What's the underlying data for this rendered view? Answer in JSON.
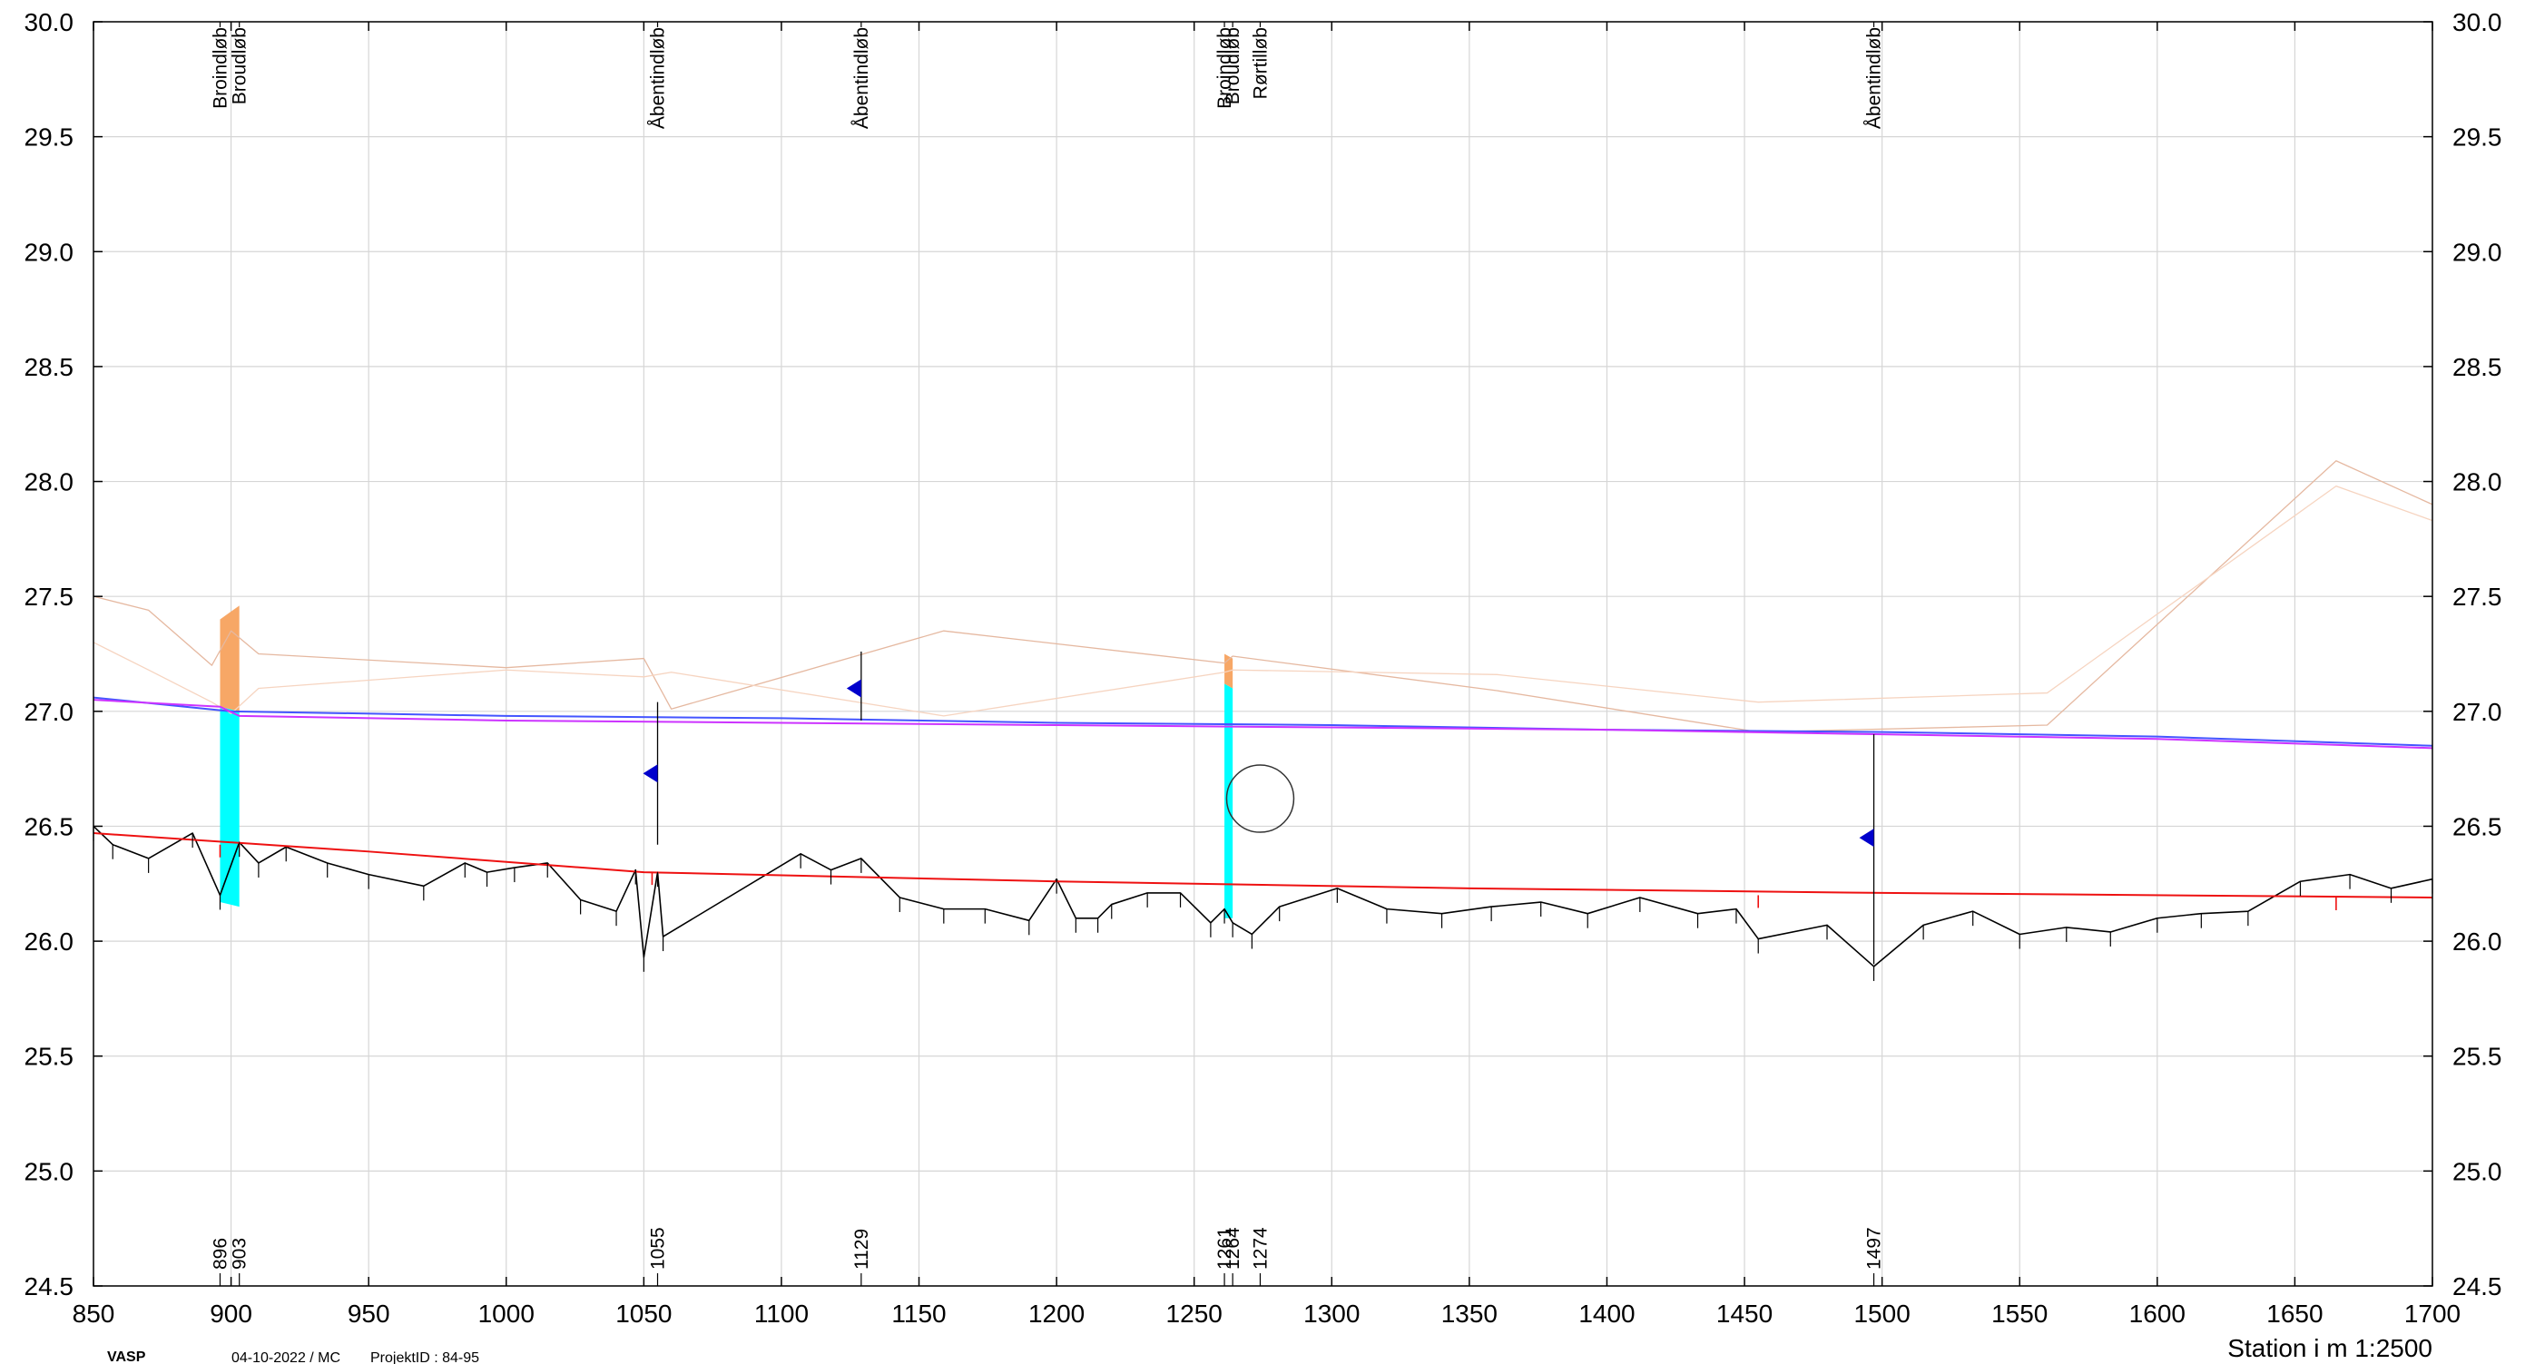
{
  "chart_data": {
    "type": "line",
    "xlim": [
      850,
      1700
    ],
    "ylim": [
      24.5,
      30.0
    ],
    "x_ticks": [
      850,
      900,
      950,
      1000,
      1050,
      1100,
      1150,
      1200,
      1250,
      1300,
      1350,
      1400,
      1450,
      1500,
      1550,
      1600,
      1650,
      1700
    ],
    "y_ticks": [
      24.5,
      25.0,
      25.5,
      26.0,
      26.5,
      27.0,
      27.5,
      28.0,
      28.5,
      29.0,
      29.5,
      30.0
    ],
    "x_axis_label": "Station i m  1:2500",
    "grid": true,
    "footer": {
      "logo": "VASP",
      "date_line": "04-10-2022 / MC",
      "project": "ProjektID : 84-95"
    },
    "structures": [
      {
        "station": 896,
        "station_label": "896",
        "name": "Broindløb"
      },
      {
        "station": 903,
        "station_label": "903",
        "name": "Broudløb"
      },
      {
        "station": 1055,
        "station_label": "1055",
        "name": "Åbentindløb"
      },
      {
        "station": 1129,
        "station_label": "1129",
        "name": "Åbentindløb"
      },
      {
        "station": 1261,
        "station_label": "1261",
        "name": "Broindløb"
      },
      {
        "station": 1264,
        "station_label": "1264",
        "name": "Broudløb"
      },
      {
        "station": 1274,
        "station_label": "1274",
        "name": "Rørtilløb"
      },
      {
        "station": 1497,
        "station_label": "1497",
        "name": "Åbentindløb"
      }
    ],
    "series": [
      {
        "key": "bed",
        "color": "#000000",
        "x": [
          850,
          857,
          870,
          886,
          896,
          903,
          910,
          920,
          935,
          950,
          970,
          985,
          993,
          1003,
          1015,
          1027,
          1040,
          1047,
          1050,
          1055,
          1057,
          1107,
          1118,
          1129,
          1143,
          1159,
          1174,
          1190,
          1200,
          1207,
          1215,
          1220,
          1233,
          1245,
          1256,
          1261,
          1264,
          1271,
          1281,
          1302,
          1320,
          1340,
          1358,
          1376,
          1393,
          1412,
          1433,
          1447,
          1455,
          1480,
          1497,
          1515,
          1533,
          1550,
          1567,
          1583,
          1600,
          1616,
          1633,
          1652,
          1670,
          1685,
          1700
        ],
        "y": [
          26.5,
          26.42,
          26.36,
          26.47,
          26.2,
          26.43,
          26.34,
          26.41,
          26.34,
          26.29,
          26.24,
          26.34,
          26.3,
          26.32,
          26.34,
          26.18,
          26.13,
          26.31,
          25.93,
          26.3,
          26.02,
          26.38,
          26.31,
          26.36,
          26.19,
          26.14,
          26.14,
          26.09,
          26.27,
          26.1,
          26.1,
          26.16,
          26.21,
          26.21,
          26.08,
          26.14,
          26.08,
          26.03,
          26.15,
          26.23,
          26.14,
          26.12,
          26.15,
          26.17,
          26.12,
          26.19,
          26.12,
          26.14,
          26.01,
          26.07,
          25.89,
          26.07,
          26.13,
          26.03,
          26.06,
          26.04,
          26.1,
          26.12,
          26.13,
          26.26,
          26.29,
          26.23,
          26.27
        ]
      },
      {
        "key": "bank-left",
        "color": "#e5b8a0",
        "x": [
          850,
          870,
          893,
          900,
          910,
          1000,
          1050,
          1060,
          1159,
          1261,
          1264,
          1360,
          1455,
          1560,
          1665,
          1700
        ],
        "y": [
          27.5,
          27.44,
          27.2,
          27.35,
          27.25,
          27.19,
          27.23,
          27.01,
          27.35,
          27.21,
          27.24,
          27.09,
          26.91,
          26.94,
          28.09,
          27.9
        ],
        "width": 1.3
      },
      {
        "key": "bank-right",
        "color": "#f6d4c0",
        "x": [
          850,
          870,
          893,
          900,
          910,
          1000,
          1050,
          1060,
          1159,
          1261,
          1264,
          1360,
          1455,
          1560,
          1665,
          1700
        ],
        "y": [
          27.3,
          27.18,
          27.04,
          26.99,
          27.1,
          27.18,
          27.15,
          27.17,
          26.98,
          27.17,
          27.18,
          27.16,
          27.04,
          27.08,
          27.98,
          27.83
        ],
        "width": 1.3
      },
      {
        "key": "design-bed",
        "color": "#ee1111",
        "x": [
          850,
          950,
          1050,
          1200,
          1350,
          1500,
          1700
        ],
        "y": [
          26.47,
          26.39,
          26.3,
          26.26,
          26.23,
          26.21,
          26.19
        ],
        "width": 2
      },
      {
        "key": "water-level-1",
        "color": "#4455ff",
        "x": [
          850,
          900,
          1000,
          1100,
          1200,
          1300,
          1400,
          1500,
          1600,
          1700
        ],
        "y": [
          27.06,
          27.0,
          26.98,
          26.97,
          26.95,
          26.94,
          26.92,
          26.91,
          26.89,
          26.85
        ],
        "width": 2
      },
      {
        "key": "water-level-2",
        "color": "#cc33ff",
        "x": [
          850,
          896,
          903,
          1000,
          1100,
          1200,
          1300,
          1400,
          1500,
          1600,
          1700
        ],
        "y": [
          27.05,
          27.02,
          26.98,
          26.96,
          26.95,
          26.94,
          26.93,
          26.92,
          26.9,
          26.88,
          26.84
        ],
        "width": 2
      }
    ]
  }
}
